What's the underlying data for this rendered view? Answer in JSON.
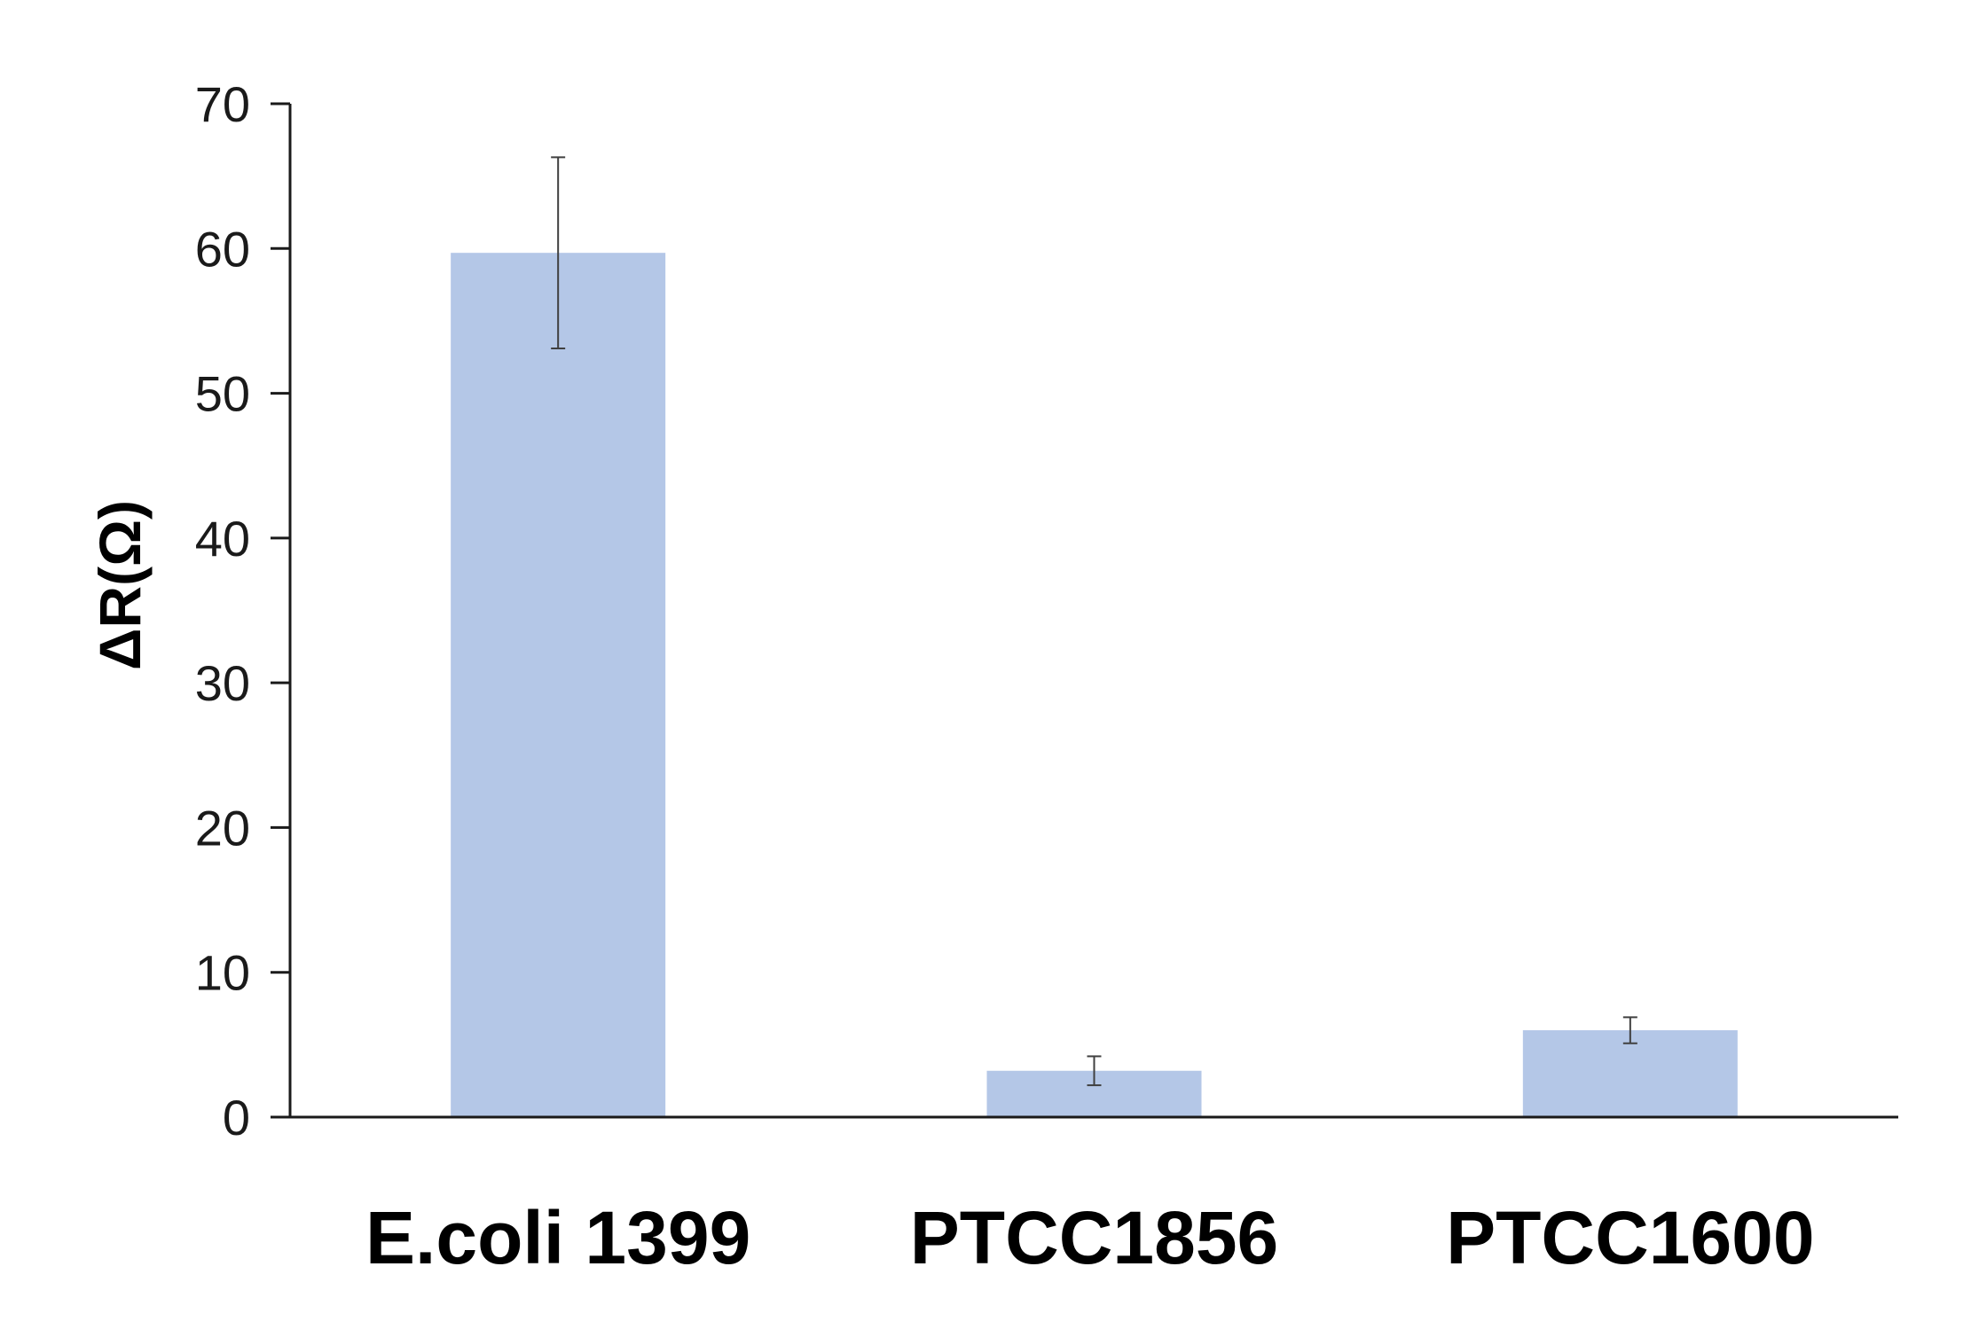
{
  "chart_data": {
    "type": "bar",
    "categories": [
      "E.coli 1399",
      "PTCC1856",
      "PTCC1600"
    ],
    "values": [
      59.7,
      3.2,
      6.0
    ],
    "error": [
      6.6,
      1.0,
      0.9
    ],
    "title": "",
    "xlabel": "",
    "ylabel": "ΔR(Ω)",
    "ylim": [
      0,
      70
    ],
    "yticks": [
      0,
      10,
      20,
      30,
      40,
      50,
      60,
      70
    ],
    "grid": false,
    "legend": "none",
    "bar_color": "#b4c7e7",
    "axis_color": "#1a1a1a",
    "errorbar_color": "#404040"
  }
}
